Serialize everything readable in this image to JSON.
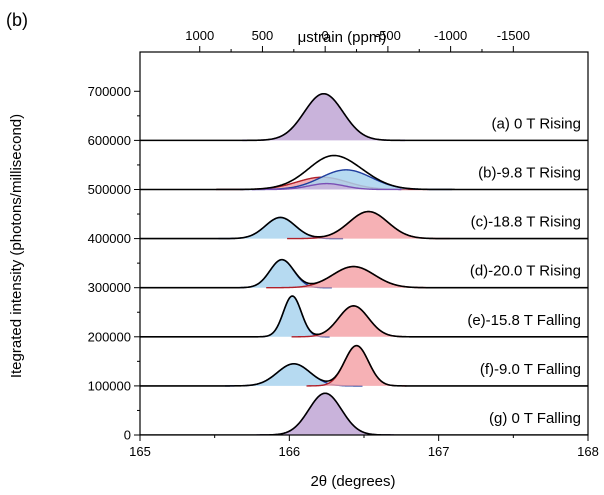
{
  "chart_data": {
    "type": "area",
    "panel_label": "(b)",
    "xlabel": "2θ (degrees)",
    "ylabel": "Itegrated intensity (photons/millisecond)",
    "top_axis_label": "μstrain (ppm)",
    "xlim": [
      165,
      168
    ],
    "ylim": [
      0,
      780000
    ],
    "x_ticks": [
      165,
      166,
      167,
      168
    ],
    "x_tick_labels": [
      "165",
      "166",
      "167",
      "168"
    ],
    "y_ticks": [
      0,
      100000,
      200000,
      300000,
      400000,
      500000,
      600000,
      700000
    ],
    "y_tick_labels": [
      "0",
      "100000",
      "200000",
      "300000",
      "400000",
      "500000",
      "600000",
      "700000"
    ],
    "top_ticks": [
      1000,
      500,
      0,
      -500,
      -1000,
      -1500
    ],
    "top_tick_labels": [
      "1000",
      "500",
      "0",
      "-500",
      "-1000",
      "-1500"
    ],
    "top_tick_2theta": [
      165.4,
      165.82,
      166.24,
      166.66,
      167.08,
      167.5
    ],
    "colors": {
      "purple_fill": "#c9b3db",
      "blue_fill": "#a9d4ee",
      "blue_line": "#1f3d9e",
      "red_fill": "#f5a3a8",
      "red_line": "#b0202a",
      "total_line": "#000000",
      "baseline": "#000000",
      "bg_line": "#7a4fb5"
    },
    "series": [
      {
        "name": "(a) 0 T Rising",
        "baseline": 600000,
        "peaks": [
          {
            "center": 166.23,
            "sigma": 0.13,
            "amplitude": 95000,
            "fill": "purple"
          }
        ]
      },
      {
        "name": "(b)-9.8 T Rising",
        "baseline": 500000,
        "peaks": [
          {
            "center": 166.22,
            "sigma": 0.17,
            "amplitude": 25000,
            "fill": "red"
          },
          {
            "center": 166.38,
            "sigma": 0.17,
            "amplitude": 40000,
            "fill": "blue"
          },
          {
            "center": 166.25,
            "sigma": 0.12,
            "amplitude": 12000,
            "fill": "purple"
          }
        ]
      },
      {
        "name": "(c)-18.8 T Rising",
        "baseline": 400000,
        "peaks": [
          {
            "center": 165.94,
            "sigma": 0.1,
            "amplitude": 43000,
            "fill": "blue"
          },
          {
            "center": 166.53,
            "sigma": 0.13,
            "amplitude": 55000,
            "fill": "red"
          }
        ]
      },
      {
        "name": "(d)-20.0 T Rising",
        "baseline": 300000,
        "peaks": [
          {
            "center": 165.95,
            "sigma": 0.08,
            "amplitude": 57000,
            "fill": "blue"
          },
          {
            "center": 166.43,
            "sigma": 0.14,
            "amplitude": 43000,
            "fill": "red"
          }
        ]
      },
      {
        "name": "(e)-15.8 T Falling",
        "baseline": 200000,
        "peaks": [
          {
            "center": 166.02,
            "sigma": 0.06,
            "amplitude": 83000,
            "fill": "blue"
          },
          {
            "center": 166.43,
            "sigma": 0.1,
            "amplitude": 63000,
            "fill": "red"
          }
        ]
      },
      {
        "name": "(f)-9.0 T Falling",
        "baseline": 100000,
        "peaks": [
          {
            "center": 166.03,
            "sigma": 0.11,
            "amplitude": 45000,
            "fill": "blue"
          },
          {
            "center": 166.45,
            "sigma": 0.08,
            "amplitude": 82000,
            "fill": "red"
          }
        ]
      },
      {
        "name": "(g) 0 T Falling",
        "baseline": 0,
        "peaks": [
          {
            "center": 166.24,
            "sigma": 0.11,
            "amplitude": 85000,
            "fill": "purple"
          }
        ]
      }
    ]
  }
}
